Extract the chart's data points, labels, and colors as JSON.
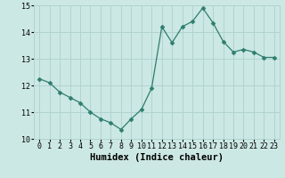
{
  "x": [
    0,
    1,
    2,
    3,
    4,
    5,
    6,
    7,
    8,
    9,
    10,
    11,
    12,
    13,
    14,
    15,
    16,
    17,
    18,
    19,
    20,
    21,
    22,
    23
  ],
  "y": [
    12.25,
    12.1,
    11.75,
    11.55,
    11.35,
    11.0,
    10.75,
    10.6,
    10.35,
    10.75,
    11.1,
    11.9,
    14.2,
    13.6,
    14.2,
    14.4,
    14.9,
    14.35,
    13.65,
    13.25,
    13.35,
    13.25,
    13.05,
    13.05
  ],
  "xlabel": "Humidex (Indice chaleur)",
  "ylim": [
    10,
    15
  ],
  "xlim": [
    -0.5,
    23.5
  ],
  "yticks": [
    10,
    11,
    12,
    13,
    14,
    15
  ],
  "xticks": [
    0,
    1,
    2,
    3,
    4,
    5,
    6,
    7,
    8,
    9,
    10,
    11,
    12,
    13,
    14,
    15,
    16,
    17,
    18,
    19,
    20,
    21,
    22,
    23
  ],
  "xtick_labels": [
    "0",
    "1",
    "2",
    "3",
    "4",
    "5",
    "6",
    "7",
    "8",
    "9",
    "10",
    "11",
    "12",
    "13",
    "14",
    "15",
    "16",
    "17",
    "18",
    "19",
    "20",
    "21",
    "22",
    "23"
  ],
  "line_color": "#2e7d6e",
  "marker": "D",
  "marker_size": 2.5,
  "background_color": "#cce8e4",
  "grid_color": "#b0d4d0",
  "tick_fontsize": 6,
  "xlabel_fontsize": 7.5
}
